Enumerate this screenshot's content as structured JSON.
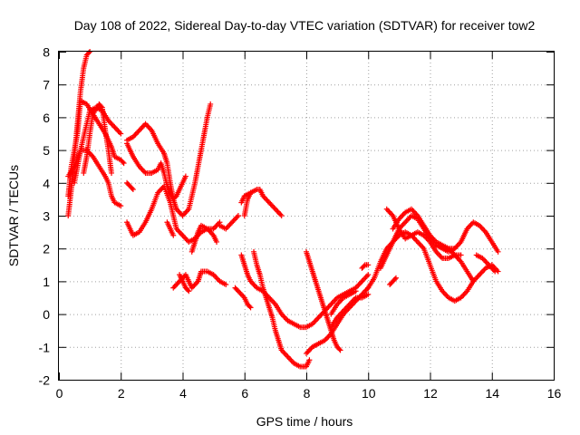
{
  "chart_data": {
    "type": "scatter",
    "title": "Day 108 of 2022, Sidereal Day-to-day VTEC variation (SDTVAR) for receiver tow2",
    "xlabel": "GPS time / hours",
    "ylabel": "SDTVAR / TECUs",
    "xlim": [
      0,
      16
    ],
    "ylim": [
      -2,
      8
    ],
    "xticks": [
      "0",
      "2",
      "4",
      "6",
      "8",
      "10",
      "12",
      "14",
      "16"
    ],
    "yticks": [
      "-2",
      "-1",
      "0",
      "1",
      "2",
      "3",
      "4",
      "5",
      "6",
      "7",
      "8"
    ],
    "grid": true,
    "marker": "plus",
    "color": "#ff0000",
    "series": [
      {
        "points": [
          [
            0.3,
            3.0
          ],
          [
            0.4,
            3.8
          ],
          [
            0.5,
            4.8
          ],
          [
            0.6,
            5.8
          ],
          [
            0.7,
            6.8
          ],
          [
            0.8,
            7.5
          ],
          [
            0.9,
            7.9
          ],
          [
            1.0,
            8.0
          ]
        ]
      },
      {
        "points": [
          [
            0.3,
            4.2
          ],
          [
            0.5,
            4.5
          ],
          [
            0.7,
            5.0
          ],
          [
            0.9,
            5.0
          ],
          [
            1.1,
            4.8
          ],
          [
            1.3,
            4.5
          ],
          [
            1.5,
            4.2
          ],
          [
            1.6,
            4.0
          ],
          [
            1.7,
            3.6
          ],
          [
            1.8,
            3.4
          ],
          [
            2.0,
            3.3
          ]
        ]
      },
      {
        "points": [
          [
            0.3,
            3.6
          ],
          [
            0.4,
            4.5
          ],
          [
            0.6,
            5.5
          ],
          [
            0.7,
            6.5
          ],
          [
            0.9,
            6.4
          ],
          [
            1.1,
            6.1
          ],
          [
            1.3,
            5.8
          ],
          [
            1.5,
            5.5
          ],
          [
            1.7,
            5.1
          ],
          [
            1.8,
            4.8
          ],
          [
            2.0,
            4.7
          ],
          [
            2.1,
            4.6
          ]
        ]
      },
      {
        "points": [
          [
            0.5,
            4.0
          ],
          [
            0.7,
            5.0
          ],
          [
            0.9,
            5.8
          ],
          [
            1.0,
            6.2
          ],
          [
            1.2,
            6.3
          ],
          [
            1.4,
            6.2
          ],
          [
            1.6,
            5.9
          ],
          [
            1.8,
            5.7
          ],
          [
            2.0,
            5.5
          ]
        ]
      },
      {
        "points": [
          [
            0.8,
            4.3
          ],
          [
            0.9,
            4.8
          ],
          [
            1.0,
            5.5
          ],
          [
            1.1,
            6.1
          ],
          [
            1.3,
            6.4
          ],
          [
            1.4,
            6.3
          ],
          [
            1.5,
            5.6
          ],
          [
            1.6,
            5.0
          ],
          [
            1.7,
            4.3
          ]
        ]
      },
      {
        "points": [
          [
            2.2,
            5.3
          ],
          [
            2.4,
            5.4
          ],
          [
            2.6,
            5.6
          ],
          [
            2.8,
            5.8
          ],
          [
            3.0,
            5.6
          ],
          [
            3.2,
            5.2
          ],
          [
            3.4,
            4.9
          ],
          [
            3.5,
            4.6
          ],
          [
            3.6,
            4.0
          ],
          [
            3.7,
            3.5
          ]
        ]
      },
      {
        "points": [
          [
            2.2,
            5.2
          ],
          [
            2.4,
            4.8
          ],
          [
            2.6,
            4.5
          ],
          [
            2.8,
            4.3
          ],
          [
            3.0,
            4.3
          ],
          [
            3.2,
            4.4
          ],
          [
            3.3,
            4.6
          ],
          [
            3.4,
            4.3
          ],
          [
            3.5,
            3.9
          ],
          [
            3.7,
            3.5
          ],
          [
            3.8,
            3.2
          ],
          [
            4.0,
            3.0
          ],
          [
            4.2,
            3.2
          ],
          [
            4.3,
            3.6
          ],
          [
            4.4,
            4.0
          ],
          [
            4.5,
            4.5
          ],
          [
            4.6,
            5.0
          ],
          [
            4.7,
            5.5
          ],
          [
            4.8,
            6.0
          ],
          [
            4.9,
            6.4
          ]
        ]
      },
      {
        "points": [
          [
            2.2,
            2.8
          ],
          [
            2.3,
            2.6
          ],
          [
            2.4,
            2.4
          ],
          [
            2.6,
            2.5
          ],
          [
            2.8,
            2.8
          ],
          [
            3.0,
            3.2
          ],
          [
            3.2,
            3.7
          ],
          [
            3.4,
            3.9
          ],
          [
            3.6,
            3.4
          ],
          [
            3.7,
            3.0
          ],
          [
            3.8,
            2.6
          ],
          [
            4.0,
            2.4
          ],
          [
            4.2,
            2.2
          ],
          [
            4.4,
            2.3
          ],
          [
            4.6,
            2.5
          ],
          [
            4.8,
            2.6
          ],
          [
            5.0,
            2.6
          ],
          [
            5.2,
            2.8
          ]
        ]
      },
      {
        "points": [
          [
            2.2,
            4.0
          ],
          [
            2.3,
            3.9
          ],
          [
            2.4,
            3.8
          ]
        ]
      },
      {
        "points": [
          [
            3.5,
            2.8
          ],
          [
            3.6,
            2.6
          ],
          [
            3.7,
            2.4
          ]
        ]
      },
      {
        "points": [
          [
            3.7,
            3.5
          ],
          [
            3.8,
            3.6
          ],
          [
            3.9,
            3.8
          ],
          [
            4.0,
            4.0
          ],
          [
            4.1,
            4.2
          ]
        ]
      },
      {
        "points": [
          [
            3.7,
            0.8
          ],
          [
            3.9,
            1.0
          ],
          [
            4.1,
            1.2
          ],
          [
            4.2,
            1.0
          ],
          [
            4.3,
            0.8
          ],
          [
            4.5,
            1.0
          ],
          [
            4.6,
            1.3
          ],
          [
            4.8,
            1.3
          ],
          [
            5.0,
            1.2
          ],
          [
            5.2,
            1.0
          ],
          [
            5.4,
            0.9
          ]
        ]
      },
      {
        "points": [
          [
            3.9,
            1.2
          ],
          [
            4.0,
            1.0
          ],
          [
            4.1,
            0.8
          ],
          [
            4.2,
            0.7
          ]
        ]
      },
      {
        "points": [
          [
            4.3,
            1.9
          ],
          [
            4.4,
            2.2
          ],
          [
            4.5,
            2.5
          ],
          [
            4.6,
            2.7
          ],
          [
            4.8,
            2.6
          ],
          [
            5.0,
            2.4
          ],
          [
            5.1,
            2.2
          ]
        ]
      },
      {
        "points": [
          [
            5.2,
            2.7
          ],
          [
            5.4,
            2.6
          ],
          [
            5.6,
            2.8
          ],
          [
            5.8,
            3.0
          ]
        ]
      },
      {
        "points": [
          [
            5.7,
            0.8
          ],
          [
            5.8,
            0.7
          ],
          [
            6.0,
            0.5
          ],
          [
            6.1,
            0.3
          ],
          [
            6.2,
            0.2
          ]
        ]
      },
      {
        "points": [
          [
            5.9,
            1.8
          ],
          [
            6.0,
            1.5
          ],
          [
            6.1,
            1.2
          ],
          [
            6.2,
            1.0
          ],
          [
            6.4,
            0.8
          ],
          [
            6.6,
            0.7
          ],
          [
            6.8,
            0.5
          ],
          [
            7.0,
            0.3
          ],
          [
            7.2,
            0.0
          ],
          [
            7.4,
            -0.2
          ],
          [
            7.6,
            -0.3
          ],
          [
            7.8,
            -0.4
          ],
          [
            8.0,
            -0.4
          ],
          [
            8.2,
            -0.3
          ],
          [
            8.4,
            -0.1
          ],
          [
            8.6,
            0.1
          ],
          [
            8.8,
            0.3
          ],
          [
            9.0,
            0.5
          ],
          [
            9.2,
            0.6
          ],
          [
            9.4,
            0.7
          ],
          [
            9.6,
            0.8
          ],
          [
            9.8,
            1.0
          ],
          [
            10.0,
            1.2
          ]
        ]
      },
      {
        "points": [
          [
            5.9,
            3.4
          ],
          [
            6.0,
            3.6
          ],
          [
            6.2,
            3.7
          ],
          [
            6.4,
            3.8
          ],
          [
            6.5,
            3.8
          ],
          [
            6.6,
            3.6
          ],
          [
            6.8,
            3.4
          ],
          [
            7.0,
            3.2
          ],
          [
            7.2,
            3.0
          ]
        ]
      },
      {
        "points": [
          [
            6.0,
            3.0
          ],
          [
            6.1,
            3.5
          ],
          [
            6.2,
            3.7
          ]
        ]
      },
      {
        "points": [
          [
            6.3,
            1.9
          ],
          [
            6.4,
            1.5
          ],
          [
            6.5,
            1.2
          ],
          [
            6.6,
            0.8
          ],
          [
            6.7,
            0.5
          ],
          [
            6.8,
            0.2
          ],
          [
            6.9,
            -0.1
          ],
          [
            7.0,
            -0.5
          ],
          [
            7.1,
            -0.8
          ],
          [
            7.2,
            -1.1
          ],
          [
            7.4,
            -1.3
          ],
          [
            7.6,
            -1.5
          ],
          [
            7.8,
            -1.6
          ],
          [
            8.0,
            -1.6
          ],
          [
            8.1,
            -1.4
          ]
        ]
      },
      {
        "points": [
          [
            8.0,
            1.9
          ],
          [
            8.1,
            1.6
          ],
          [
            8.2,
            1.3
          ],
          [
            8.3,
            1.0
          ],
          [
            8.4,
            0.7
          ],
          [
            8.5,
            0.4
          ],
          [
            8.6,
            0.1
          ],
          [
            8.7,
            -0.2
          ],
          [
            8.8,
            -0.5
          ],
          [
            8.9,
            -0.8
          ],
          [
            9.0,
            -1.0
          ],
          [
            9.1,
            -1.1
          ]
        ]
      },
      {
        "points": [
          [
            8.0,
            -1.2
          ],
          [
            8.2,
            -1.0
          ],
          [
            8.4,
            -0.9
          ],
          [
            8.6,
            -0.8
          ],
          [
            8.8,
            -0.6
          ],
          [
            9.0,
            -0.3
          ],
          [
            9.2,
            0.0
          ],
          [
            9.4,
            0.2
          ],
          [
            9.6,
            0.4
          ],
          [
            9.8,
            0.6
          ],
          [
            10.0,
            0.8
          ]
        ]
      },
      {
        "points": [
          [
            8.8,
            -0.4
          ],
          [
            9.0,
            -0.1
          ],
          [
            9.2,
            0.1
          ],
          [
            9.4,
            0.3
          ],
          [
            9.6,
            0.5
          ],
          [
            9.8,
            0.5
          ],
          [
            10.0,
            0.6
          ]
        ]
      },
      {
        "points": [
          [
            8.8,
            0.0
          ],
          [
            9.0,
            0.3
          ],
          [
            9.2,
            0.5
          ],
          [
            9.4,
            0.6
          ],
          [
            9.6,
            0.7
          ]
        ]
      },
      {
        "points": [
          [
            9.8,
            1.4
          ],
          [
            9.9,
            1.5
          ],
          [
            10.0,
            1.5
          ]
        ]
      },
      {
        "points": [
          [
            10.0,
            0.8
          ],
          [
            10.2,
            1.1
          ],
          [
            10.4,
            1.6
          ],
          [
            10.6,
            2.0
          ],
          [
            10.8,
            2.2
          ],
          [
            11.0,
            2.4
          ],
          [
            11.2,
            2.5
          ],
          [
            11.4,
            2.4
          ],
          [
            11.6,
            2.2
          ],
          [
            11.8,
            2.0
          ],
          [
            12.0,
            1.5
          ],
          [
            12.2,
            1.0
          ],
          [
            12.4,
            0.7
          ],
          [
            12.6,
            0.5
          ],
          [
            12.8,
            0.4
          ],
          [
            13.0,
            0.5
          ],
          [
            13.2,
            0.7
          ],
          [
            13.4,
            1.0
          ],
          [
            13.6,
            1.2
          ],
          [
            13.8,
            1.4
          ],
          [
            14.0,
            1.5
          ],
          [
            14.2,
            1.3
          ]
        ]
      },
      {
        "points": [
          [
            10.4,
            1.4
          ],
          [
            10.6,
            1.8
          ],
          [
            10.8,
            2.2
          ],
          [
            11.0,
            2.6
          ],
          [
            11.2,
            2.8
          ],
          [
            11.4,
            3.0
          ],
          [
            11.6,
            2.9
          ],
          [
            11.8,
            2.6
          ],
          [
            12.0,
            2.3
          ],
          [
            12.2,
            2.1
          ],
          [
            12.4,
            2.0
          ],
          [
            12.6,
            1.9
          ],
          [
            12.8,
            2.0
          ],
          [
            13.0,
            2.2
          ],
          [
            13.2,
            2.6
          ],
          [
            13.4,
            2.8
          ],
          [
            13.6,
            2.7
          ],
          [
            13.8,
            2.5
          ],
          [
            14.0,
            2.2
          ],
          [
            14.2,
            1.9
          ]
        ]
      },
      {
        "points": [
          [
            10.6,
            3.2
          ],
          [
            10.8,
            3.0
          ],
          [
            11.0,
            2.6
          ],
          [
            11.2,
            2.3
          ],
          [
            11.4,
            2.4
          ],
          [
            11.6,
            2.5
          ],
          [
            11.8,
            2.4
          ],
          [
            12.0,
            2.2
          ],
          [
            12.2,
            1.9
          ],
          [
            12.4,
            1.7
          ],
          [
            12.6,
            1.7
          ],
          [
            12.8,
            1.8
          ],
          [
            13.0,
            1.8
          ]
        ]
      },
      {
        "points": [
          [
            10.8,
            2.6
          ],
          [
            11.0,
            2.9
          ],
          [
            11.2,
            3.1
          ],
          [
            11.4,
            3.2
          ],
          [
            11.6,
            3.0
          ],
          [
            11.8,
            2.7
          ],
          [
            12.0,
            2.4
          ],
          [
            12.2,
            2.2
          ],
          [
            12.4,
            2.1
          ],
          [
            12.6,
            2.0
          ],
          [
            12.8,
            2.0
          ]
        ]
      },
      {
        "points": [
          [
            10.7,
            0.9
          ],
          [
            10.8,
            1.0
          ],
          [
            10.9,
            1.1
          ]
        ]
      },
      {
        "points": [
          [
            12.6,
            2.0
          ],
          [
            12.8,
            1.8
          ],
          [
            13.0,
            1.6
          ],
          [
            13.2,
            1.3
          ],
          [
            13.4,
            1.0
          ]
        ]
      },
      {
        "points": [
          [
            13.5,
            1.8
          ],
          [
            13.7,
            1.7
          ],
          [
            13.9,
            1.5
          ],
          [
            14.1,
            1.3
          ]
        ]
      }
    ]
  }
}
